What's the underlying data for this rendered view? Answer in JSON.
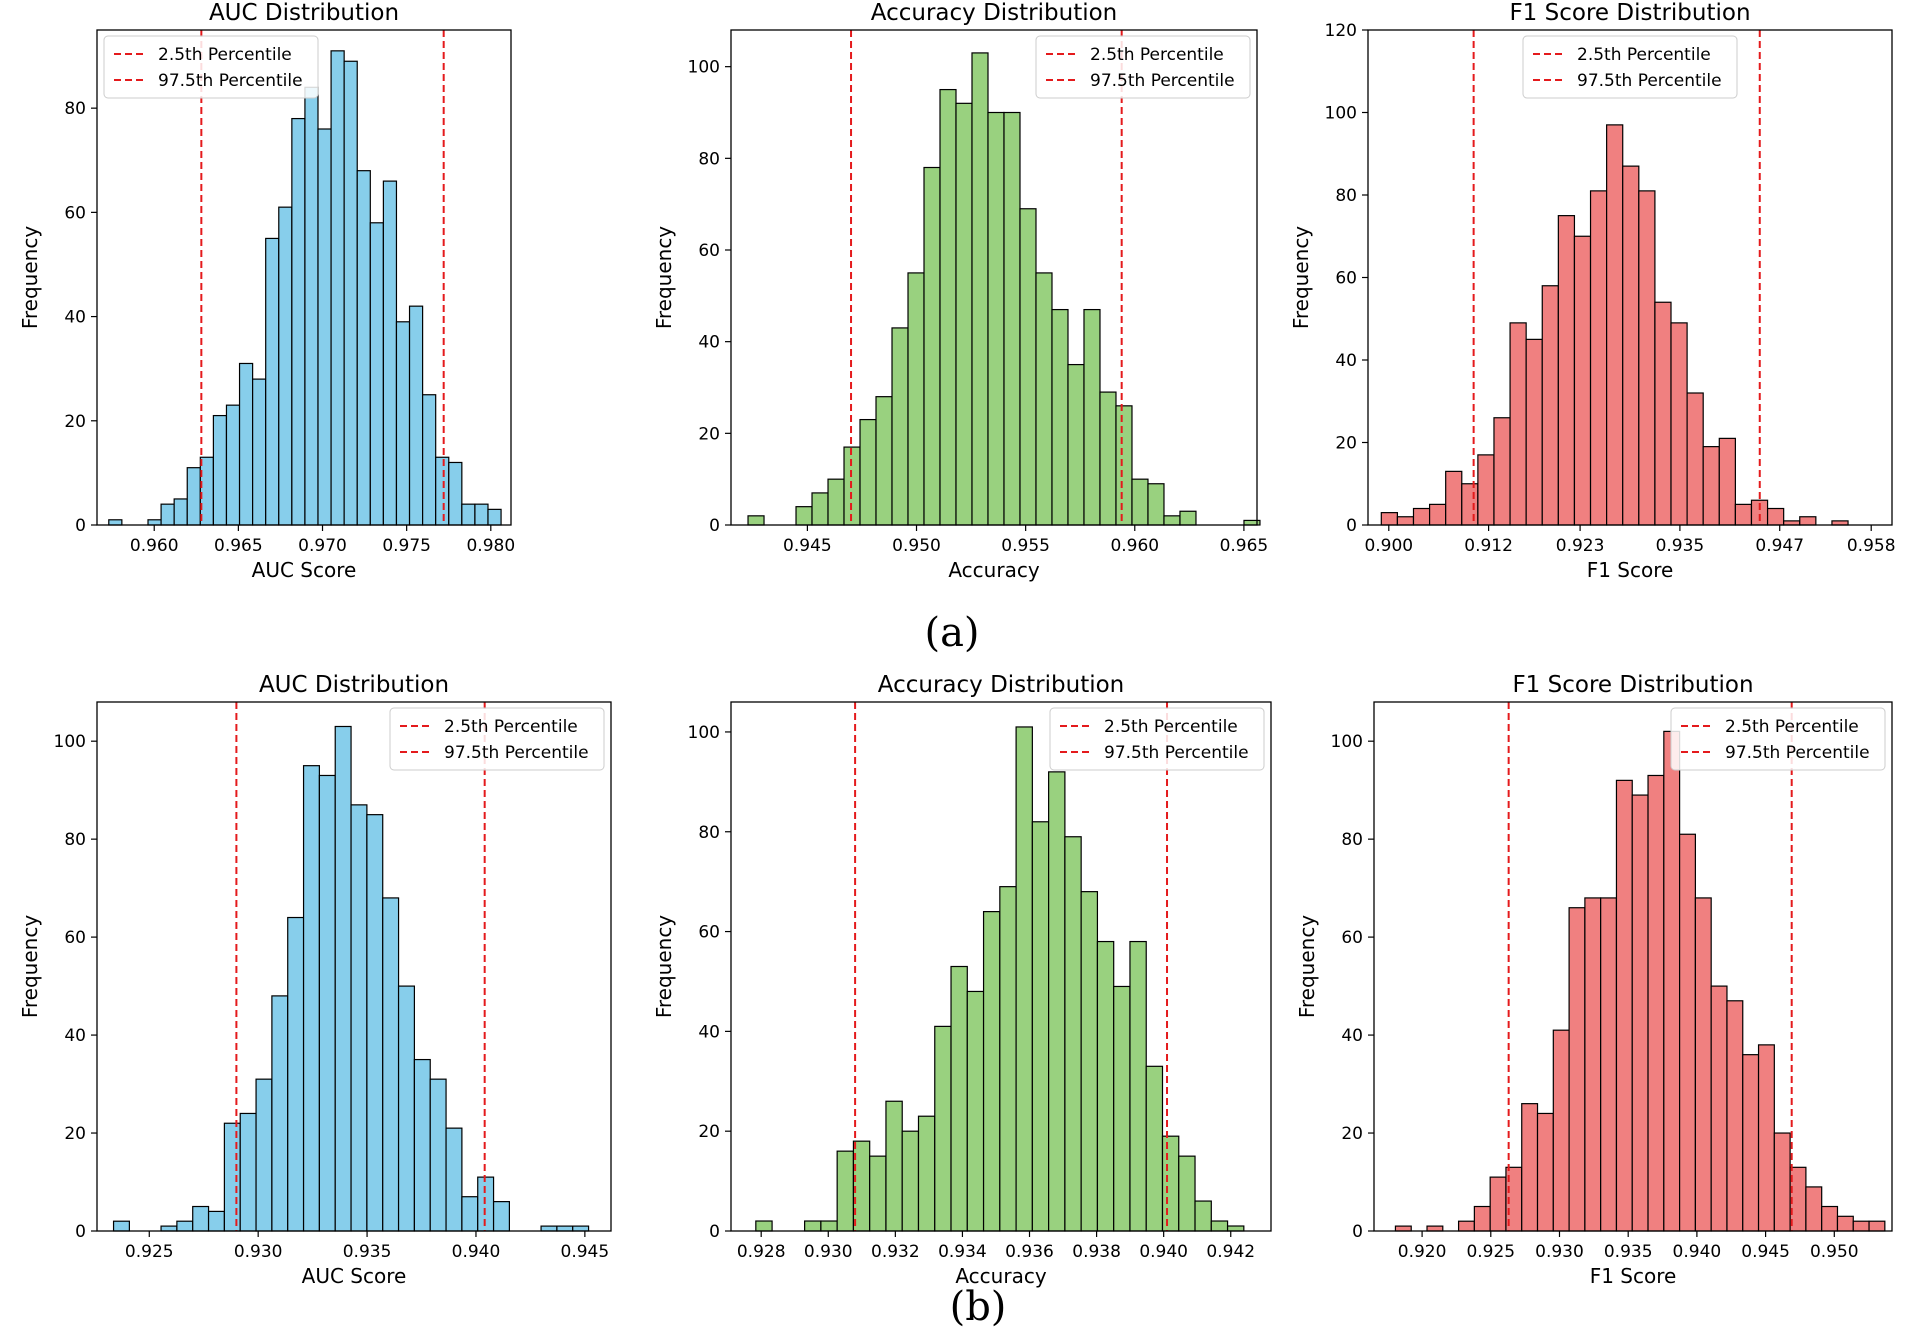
{
  "figure_labels": {
    "a": "(a)",
    "b": "(b)"
  },
  "chart_data": [
    {
      "type": "bar",
      "panel": "a",
      "title": "AUC Distribution",
      "xlabel": "AUC Score",
      "ylabel": "Frequency",
      "color": "#87ceeb",
      "xlim": [
        0.9566,
        0.9812
      ],
      "ylim": [
        0,
        95
      ],
      "xticks": [
        0.96,
        0.965,
        0.97,
        0.975,
        0.98
      ],
      "xtick_labels": [
        "0.960",
        "0.965",
        "0.970",
        "0.975",
        "0.980"
      ],
      "yticks": [
        0,
        20,
        40,
        60,
        80
      ],
      "bin_start": 0.9573,
      "bin_width": 0.000777,
      "values": [
        1,
        0,
        0,
        1,
        4,
        5,
        11,
        13,
        21,
        23,
        31,
        28,
        55,
        61,
        78,
        84,
        76,
        91,
        89,
        68,
        58,
        66,
        39,
        42,
        25,
        13,
        12,
        4,
        4,
        3
      ],
      "percentiles": [
        0.9628,
        0.9772
      ],
      "legend": [
        "2.5th Percentile",
        "97.5th Percentile"
      ],
      "legend_loc": "upper-left"
    },
    {
      "type": "bar",
      "panel": "a",
      "title": "Accuracy Distribution",
      "xlabel": "Accuracy",
      "ylabel": "Frequency",
      "color": "#99d17f",
      "xlim": [
        0.9415,
        0.9656
      ],
      "ylim": [
        0,
        108
      ],
      "xticks": [
        0.945,
        0.95,
        0.955,
        0.96,
        0.965
      ],
      "xtick_labels": [
        "0.945",
        "0.950",
        "0.955",
        "0.960",
        "0.965"
      ],
      "yticks": [
        0,
        20,
        40,
        60,
        80,
        100
      ],
      "bin_start": 0.94228,
      "bin_width": 0.000733,
      "values": [
        2,
        0,
        0,
        4,
        7,
        10,
        17,
        23,
        28,
        43,
        55,
        78,
        95,
        92,
        103,
        90,
        90,
        69,
        55,
        47,
        35,
        47,
        29,
        26,
        10,
        9,
        2,
        3,
        0,
        0,
        0,
        1
      ],
      "percentiles": [
        0.947,
        0.9594
      ],
      "legend": [
        "2.5th Percentile",
        "97.5th Percentile"
      ],
      "legend_loc": "upper-right"
    },
    {
      "type": "bar",
      "panel": "a",
      "title": "F1 Score Distribution",
      "xlabel": "F1 Score",
      "ylabel": "Frequency",
      "color": "#f08080",
      "xlim": [
        0.8975,
        0.9605
      ],
      "ylim": [
        0,
        120
      ],
      "xticks": [
        0.9,
        0.912,
        0.923,
        0.935,
        0.947,
        0.958
      ],
      "xtick_labels": [
        "0.900",
        "0.912",
        "0.923",
        "0.935",
        "0.947",
        "0.958"
      ],
      "yticks": [
        0,
        20,
        40,
        60,
        80,
        100,
        120
      ],
      "bin_start": 0.8991,
      "bin_width": 0.001935,
      "values": [
        3,
        2,
        4,
        5,
        13,
        10,
        17,
        26,
        49,
        45,
        58,
        75,
        70,
        81,
        97,
        87,
        81,
        54,
        49,
        32,
        19,
        21,
        5,
        6,
        4,
        1,
        2,
        0,
        1
      ],
      "percentiles": [
        0.9102,
        0.9446
      ],
      "legend": [
        "2.5th Percentile",
        "97.5th Percentile"
      ],
      "legend_loc": "upper-center"
    },
    {
      "type": "bar",
      "panel": "b",
      "title": "AUC Distribution",
      "xlabel": "AUC Score",
      "ylabel": "Frequency",
      "color": "#87ceeb",
      "xlim": [
        0.9226,
        0.9462
      ],
      "ylim": [
        0,
        108
      ],
      "xticks": [
        0.925,
        0.93,
        0.935,
        0.94,
        0.945
      ],
      "xtick_labels": [
        "0.925",
        "0.930",
        "0.935",
        "0.940",
        "0.945"
      ],
      "yticks": [
        0,
        20,
        40,
        60,
        80,
        100
      ],
      "bin_start": 0.92336,
      "bin_width": 0.000727,
      "values": [
        2,
        0,
        0,
        1,
        2,
        5,
        4,
        22,
        24,
        31,
        48,
        64,
        95,
        93,
        103,
        87,
        85,
        68,
        50,
        35,
        31,
        21,
        7,
        11,
        6,
        0,
        0,
        1,
        1,
        1
      ],
      "percentiles": [
        0.929,
        0.9404
      ],
      "legend": [
        "2.5th Percentile",
        "97.5th Percentile"
      ],
      "legend_loc": "upper-right"
    },
    {
      "type": "bar",
      "panel": "b",
      "title": "Accuracy Distribution",
      "xlabel": "Accuracy",
      "ylabel": "Frequency",
      "color": "#99d17f",
      "xlim": [
        0.9271,
        0.9432
      ],
      "ylim": [
        0,
        106
      ],
      "xticks": [
        0.928,
        0.93,
        0.932,
        0.934,
        0.936,
        0.938,
        0.94,
        0.942
      ],
      "xtick_labels": [
        "0.928",
        "0.930",
        "0.932",
        "0.934",
        "0.936",
        "0.938",
        "0.940",
        "0.942"
      ],
      "yticks": [
        0,
        20,
        40,
        60,
        80,
        100
      ],
      "bin_start": 0.92784,
      "bin_width": 0.000485,
      "values": [
        2,
        0,
        0,
        2,
        2,
        16,
        18,
        15,
        26,
        20,
        23,
        41,
        53,
        48,
        64,
        69,
        101,
        82,
        92,
        79,
        68,
        58,
        49,
        58,
        33,
        19,
        15,
        6,
        2,
        1
      ],
      "percentiles": [
        0.9308,
        0.9401
      ],
      "legend": [
        "2.5th Percentile",
        "97.5th Percentile"
      ],
      "legend_loc": "upper-right"
    },
    {
      "type": "bar",
      "panel": "b",
      "title": "F1 Score Distribution",
      "xlabel": "F1 Score",
      "ylabel": "Frequency",
      "color": "#f08080",
      "xlim": [
        0.9165,
        0.9542
      ],
      "ylim": [
        0,
        108
      ],
      "xticks": [
        0.92,
        0.925,
        0.93,
        0.935,
        0.94,
        0.945,
        0.95
      ],
      "xtick_labels": [
        "0.920",
        "0.925",
        "0.930",
        "0.935",
        "0.940",
        "0.945",
        "0.950"
      ],
      "yticks": [
        0,
        20,
        40,
        60,
        80,
        100
      ],
      "bin_start": 0.91806,
      "bin_width": 0.001149,
      "values": [
        1,
        0,
        1,
        0,
        2,
        5,
        11,
        13,
        26,
        24,
        41,
        66,
        68,
        68,
        92,
        89,
        93,
        102,
        81,
        68,
        50,
        47,
        36,
        38,
        20,
        13,
        9,
        5,
        3,
        2,
        2
      ],
      "percentiles": [
        0.9263,
        0.9469
      ],
      "legend": [
        "2.5th Percentile",
        "97.5th Percentile"
      ],
      "legend_loc": "upper-right"
    }
  ]
}
